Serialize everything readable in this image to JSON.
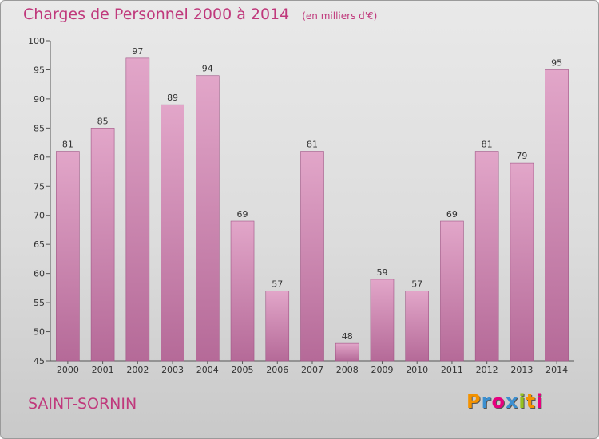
{
  "title": "Charges de Personnel 2000 à 2014",
  "subtitle": "(en milliers d'€)",
  "place": "SAINT-SORNIN",
  "logo": {
    "letters": [
      "P",
      "r",
      "o",
      "x",
      "i",
      "t",
      "i"
    ],
    "colors": [
      "#f39200",
      "#3b8fd0",
      "#e6007e",
      "#3b8fd0",
      "#95c11f",
      "#f39200",
      "#e6007e"
    ]
  },
  "colors": {
    "bar_top": "#e2a6c9",
    "bar_bottom": "#b56a98",
    "accent": "#c0397c"
  },
  "chart_data": {
    "type": "bar",
    "title": "Charges de Personnel 2000 à 2014",
    "subtitle": "(en milliers d'€)",
    "categories": [
      "2000",
      "2001",
      "2002",
      "2003",
      "2004",
      "2005",
      "2006",
      "2007",
      "2008",
      "2009",
      "2010",
      "2011",
      "2012",
      "2013",
      "2014"
    ],
    "values": [
      81,
      85,
      97,
      89,
      94,
      69,
      57,
      81,
      48,
      59,
      57,
      69,
      81,
      79,
      95
    ],
    "yticks": [
      45,
      50,
      55,
      60,
      65,
      70,
      75,
      80,
      85,
      90,
      95,
      100
    ],
    "ylim": [
      45,
      100
    ],
    "grid": false,
    "legend": "none"
  }
}
